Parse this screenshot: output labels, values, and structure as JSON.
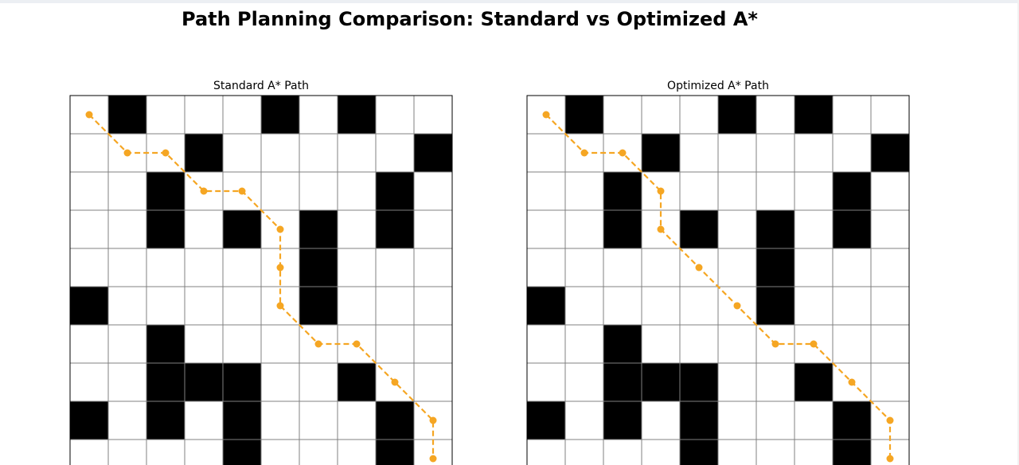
{
  "figure": {
    "title": "Path Planning Comparison: Standard vs Optimized A*"
  },
  "colors": {
    "obstacle": "#000000",
    "free": "#ffffff",
    "grid": "#808080",
    "path": "#f5a623"
  },
  "chart_data": [
    {
      "type": "heatmap",
      "title": "Standard A* Path",
      "grid_size": 10,
      "grid_lines": true,
      "obstacles": [
        [
          1,
          0
        ],
        [
          5,
          0
        ],
        [
          7,
          0
        ],
        [
          3,
          1
        ],
        [
          9,
          1
        ],
        [
          2,
          2
        ],
        [
          8,
          2
        ],
        [
          2,
          3
        ],
        [
          4,
          3
        ],
        [
          6,
          3
        ],
        [
          8,
          3
        ],
        [
          6,
          4
        ],
        [
          0,
          5
        ],
        [
          6,
          5
        ],
        [
          2,
          6
        ],
        [
          2,
          7
        ],
        [
          3,
          7
        ],
        [
          4,
          7
        ],
        [
          7,
          7
        ],
        [
          0,
          8
        ],
        [
          2,
          8
        ],
        [
          4,
          8
        ],
        [
          8,
          8
        ],
        [
          4,
          9
        ],
        [
          8,
          9
        ]
      ],
      "path": {
        "style": "dashed-with-markers",
        "points": [
          [
            0,
            0
          ],
          [
            1,
            1
          ],
          [
            2,
            1
          ],
          [
            3,
            2
          ],
          [
            4,
            2
          ],
          [
            5,
            3
          ],
          [
            5,
            4
          ],
          [
            5,
            5
          ],
          [
            6,
            6
          ],
          [
            7,
            6
          ],
          [
            8,
            7
          ],
          [
            9,
            8
          ],
          [
            9,
            9
          ]
        ]
      }
    },
    {
      "type": "heatmap",
      "title": "Optimized A* Path",
      "grid_size": 10,
      "grid_lines": true,
      "obstacles": [
        [
          1,
          0
        ],
        [
          5,
          0
        ],
        [
          7,
          0
        ],
        [
          3,
          1
        ],
        [
          9,
          1
        ],
        [
          2,
          2
        ],
        [
          8,
          2
        ],
        [
          2,
          3
        ],
        [
          4,
          3
        ],
        [
          6,
          3
        ],
        [
          8,
          3
        ],
        [
          6,
          4
        ],
        [
          0,
          5
        ],
        [
          6,
          5
        ],
        [
          2,
          6
        ],
        [
          2,
          7
        ],
        [
          3,
          7
        ],
        [
          4,
          7
        ],
        [
          7,
          7
        ],
        [
          0,
          8
        ],
        [
          2,
          8
        ],
        [
          4,
          8
        ],
        [
          8,
          8
        ],
        [
          4,
          9
        ],
        [
          8,
          9
        ]
      ],
      "path": {
        "style": "dashed-with-markers",
        "points": [
          [
            0,
            0
          ],
          [
            1,
            1
          ],
          [
            2,
            1
          ],
          [
            3,
            2
          ],
          [
            3,
            3
          ],
          [
            4,
            4
          ],
          [
            5,
            5
          ],
          [
            6,
            6
          ],
          [
            7,
            6
          ],
          [
            8,
            7
          ],
          [
            9,
            8
          ],
          [
            9,
            9
          ]
        ]
      }
    }
  ]
}
